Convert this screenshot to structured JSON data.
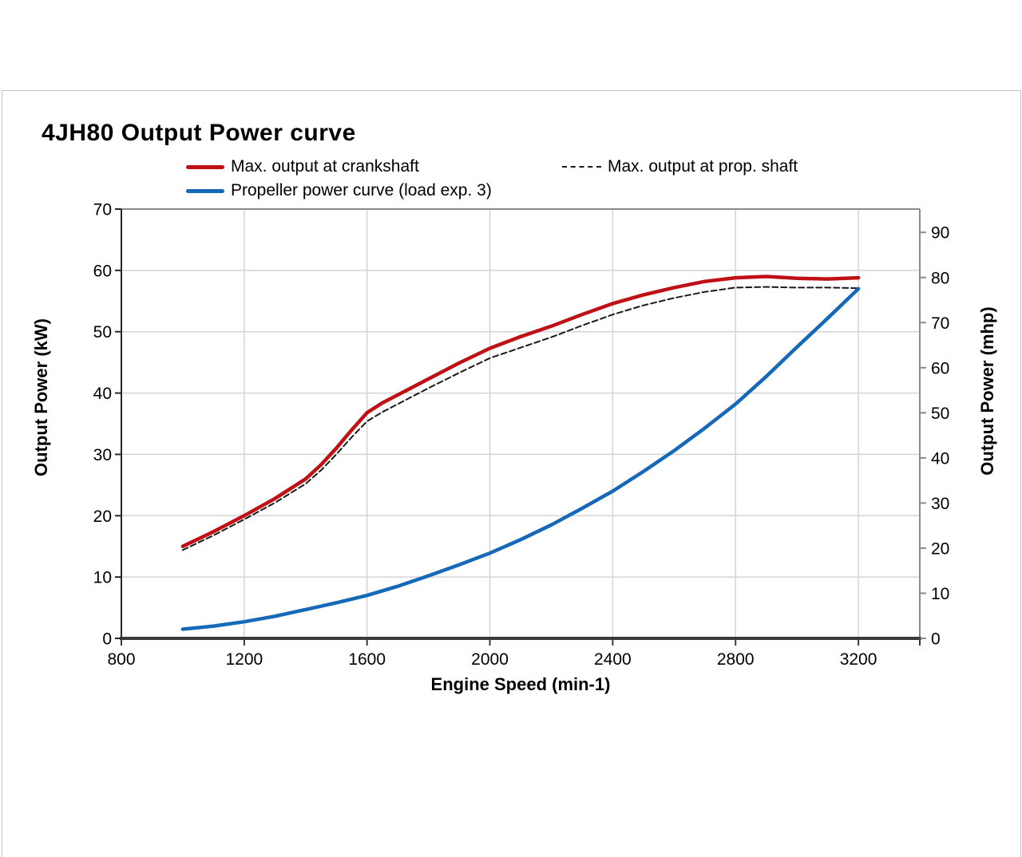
{
  "title": "4JH80 Output Power curve",
  "legend": {
    "crankshaft": {
      "label": "Max. output at crankshaft",
      "color": "#bf1015",
      "style": "solid"
    },
    "prop_shaft": {
      "label": "Max. output at prop. shaft",
      "color": "#1a1a1a",
      "style": "dashed"
    },
    "propeller": {
      "label": "Propeller power curve (load exp. 3)",
      "color": "#1668b8",
      "style": "solid"
    }
  },
  "chart_data": {
    "type": "line",
    "title": "4JH80 Output Power curve",
    "xlabel": "Engine Speed (min-1)",
    "ylabel_left": "Output Power (kW)",
    "ylabel_right": "Output Power (mhp)",
    "xlim": [
      800,
      3400
    ],
    "x_ticks": [
      800,
      1200,
      1600,
      2000,
      2400,
      2800,
      3200
    ],
    "ylim_left": [
      0,
      70
    ],
    "y_ticks_left": [
      0,
      10,
      20,
      30,
      40,
      50,
      60,
      70
    ],
    "ylim_right": [
      0,
      95.17
    ],
    "y_ticks_right": [
      0,
      10,
      20,
      30,
      40,
      50,
      60,
      70,
      80,
      90
    ],
    "grid": true,
    "legend_position": "top",
    "colors": {
      "grid": "#d4d4d4",
      "plot_border": "#8a8a8a",
      "left_axis": "#262626",
      "bottom_axis": "#3a3a3a",
      "text": "#000000"
    },
    "series": [
      {
        "name": "Max. output at crankshaft",
        "color": "#bf1015",
        "dash": "solid",
        "width": 4.5,
        "points": [
          [
            1000,
            15.0
          ],
          [
            1100,
            17.4
          ],
          [
            1200,
            20.0
          ],
          [
            1300,
            22.8
          ],
          [
            1400,
            26.0
          ],
          [
            1450,
            28.3
          ],
          [
            1500,
            31.0
          ],
          [
            1550,
            34.0
          ],
          [
            1600,
            36.8
          ],
          [
            1650,
            38.4
          ],
          [
            1700,
            39.7
          ],
          [
            1800,
            42.3
          ],
          [
            1900,
            44.9
          ],
          [
            2000,
            47.3
          ],
          [
            2100,
            49.2
          ],
          [
            2200,
            50.9
          ],
          [
            2300,
            52.8
          ],
          [
            2400,
            54.6
          ],
          [
            2500,
            56.0
          ],
          [
            2600,
            57.2
          ],
          [
            2700,
            58.2
          ],
          [
            2800,
            58.8
          ],
          [
            2900,
            59.0
          ],
          [
            3000,
            58.7
          ],
          [
            3100,
            58.6
          ],
          [
            3200,
            58.8
          ]
        ]
      },
      {
        "name": "Max. output at prop. shaft",
        "color": "#1a1a1a",
        "dash": "dashed",
        "width": 2,
        "points": [
          [
            1000,
            14.4
          ],
          [
            1100,
            16.8
          ],
          [
            1200,
            19.4
          ],
          [
            1300,
            22.1
          ],
          [
            1400,
            25.2
          ],
          [
            1450,
            27.4
          ],
          [
            1500,
            30.0
          ],
          [
            1550,
            32.8
          ],
          [
            1600,
            35.4
          ],
          [
            1650,
            36.9
          ],
          [
            1700,
            38.2
          ],
          [
            1800,
            40.8
          ],
          [
            1900,
            43.3
          ],
          [
            2000,
            45.7
          ],
          [
            2100,
            47.4
          ],
          [
            2200,
            49.1
          ],
          [
            2300,
            51.0
          ],
          [
            2400,
            52.8
          ],
          [
            2500,
            54.3
          ],
          [
            2600,
            55.5
          ],
          [
            2700,
            56.5
          ],
          [
            2800,
            57.2
          ],
          [
            2900,
            57.3
          ],
          [
            3000,
            57.2
          ],
          [
            3100,
            57.2
          ],
          [
            3200,
            57.1
          ]
        ]
      },
      {
        "name": "Propeller power curve (load exp. 3)",
        "color": "#1668b8",
        "dash": "solid",
        "width": 4.5,
        "points": [
          [
            1000,
            1.5
          ],
          [
            1100,
            2.0
          ],
          [
            1200,
            2.7
          ],
          [
            1300,
            3.6
          ],
          [
            1400,
            4.7
          ],
          [
            1500,
            5.8
          ],
          [
            1600,
            7.0
          ],
          [
            1700,
            8.5
          ],
          [
            1800,
            10.2
          ],
          [
            1900,
            12.0
          ],
          [
            2000,
            13.9
          ],
          [
            2100,
            16.1
          ],
          [
            2200,
            18.5
          ],
          [
            2300,
            21.2
          ],
          [
            2400,
            24.0
          ],
          [
            2500,
            27.2
          ],
          [
            2600,
            30.6
          ],
          [
            2700,
            34.3
          ],
          [
            2800,
            38.2
          ],
          [
            2900,
            42.7
          ],
          [
            3000,
            47.5
          ],
          [
            3100,
            52.2
          ],
          [
            3200,
            57.0
          ]
        ]
      }
    ]
  }
}
